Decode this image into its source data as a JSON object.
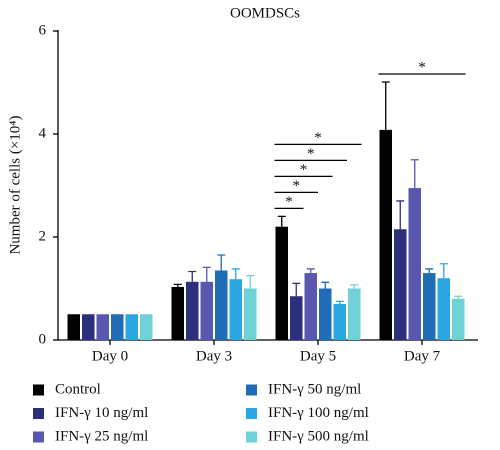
{
  "chart_data": {
    "type": "bar",
    "title": "OOMDSCs",
    "y_label": "Number of cells (×10⁴)",
    "categories": [
      "Day 0",
      "Day 3",
      "Day 5",
      "Day 7"
    ],
    "ylim": [
      0,
      6
    ],
    "yticks": [
      0,
      2,
      4,
      6
    ],
    "series": [
      {
        "name": "Control",
        "color": "#000000",
        "values": [
          0.5,
          1.03,
          2.2,
          4.08
        ],
        "errors": [
          null,
          0.05,
          0.2,
          0.93
        ]
      },
      {
        "name": "IFN-γ 10 ng/ml",
        "color": "#2b2f7c",
        "values": [
          0.5,
          1.13,
          0.85,
          2.15
        ],
        "errors": [
          null,
          0.2,
          0.25,
          0.55
        ]
      },
      {
        "name": "IFN-γ 25 ng/ml",
        "color": "#5a57b0",
        "values": [
          0.5,
          1.13,
          1.3,
          2.95
        ],
        "errors": [
          null,
          0.28,
          0.08,
          0.55
        ]
      },
      {
        "name": "IFN-γ 50 ng/ml",
        "color": "#1f6db4",
        "values": [
          0.5,
          1.35,
          1.0,
          1.3
        ],
        "errors": [
          null,
          0.3,
          0.12,
          0.08
        ]
      },
      {
        "name": "IFN-γ 100 ng/ml",
        "color": "#2aa6e0",
        "values": [
          0.5,
          1.18,
          0.7,
          1.2
        ],
        "errors": [
          null,
          0.2,
          0.05,
          0.28
        ]
      },
      {
        "name": "IFN-γ 500 ng/ml",
        "color": "#6fd0d6",
        "values": [
          0.5,
          1.0,
          1.0,
          0.8
        ],
        "errors": [
          null,
          0.25,
          0.07,
          0.05
        ]
      }
    ],
    "annotations": [
      {
        "text": "*",
        "category": "Day 5",
        "between": [
          "Control",
          "IFN-γ 10 ng/ml"
        ]
      },
      {
        "text": "*",
        "category": "Day 5",
        "between": [
          "Control",
          "IFN-γ 25 ng/ml"
        ]
      },
      {
        "text": "*",
        "category": "Day 5",
        "between": [
          "Control",
          "IFN-γ 50 ng/ml"
        ]
      },
      {
        "text": "*",
        "category": "Day 5",
        "between": [
          "Control",
          "IFN-γ 100 ng/ml"
        ]
      },
      {
        "text": "*",
        "category": "Day 5",
        "between": [
          "Control",
          "IFN-γ 500 ng/ml"
        ]
      },
      {
        "text": "*",
        "category": "Day 7",
        "between": [
          "Control",
          "IFN-γ 500 ng/ml"
        ]
      }
    ]
  }
}
